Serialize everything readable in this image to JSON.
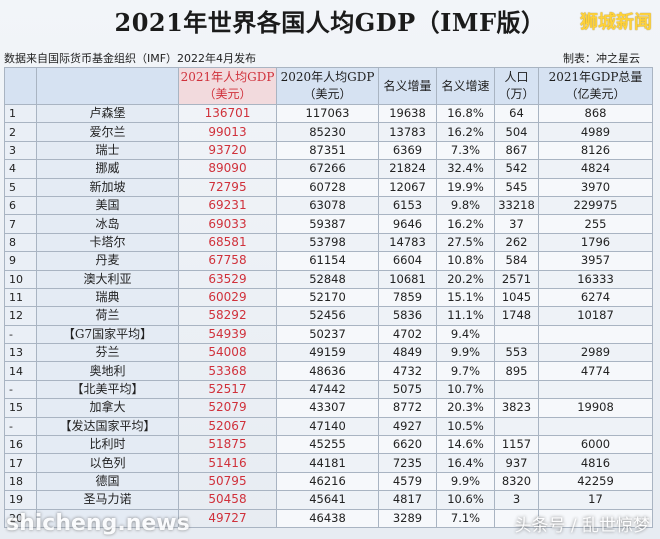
{
  "header": {
    "title": "2021年世界各国人均GDP（IMF版）",
    "brand": "狮城新闻",
    "source": "数据来自国际货币基金组织（IMF）2022年4月发布",
    "maker": "制表：冲之星云"
  },
  "columns": [
    "",
    "",
    "2021年人均GDP\n（美元）",
    "2020年人均GDP\n（美元）",
    "名义增量",
    "名义增速",
    "人口\n（万）",
    "2021年GDP总量\n（亿美元）"
  ],
  "rows": [
    {
      "rank": "1",
      "name": "卢森堡",
      "gdp2021": "136701",
      "gdp2020": "117063",
      "inc": "19638",
      "growth": "16.8%",
      "pop": "64",
      "total": "868"
    },
    {
      "rank": "2",
      "name": "爱尔兰",
      "gdp2021": "99013",
      "gdp2020": "85230",
      "inc": "13783",
      "growth": "16.2%",
      "pop": "504",
      "total": "4989"
    },
    {
      "rank": "3",
      "name": "瑞士",
      "gdp2021": "93720",
      "gdp2020": "87351",
      "inc": "6369",
      "growth": "7.3%",
      "pop": "867",
      "total": "8126"
    },
    {
      "rank": "4",
      "name": "挪威",
      "gdp2021": "89090",
      "gdp2020": "67266",
      "inc": "21824",
      "growth": "32.4%",
      "pop": "542",
      "total": "4824"
    },
    {
      "rank": "5",
      "name": "新加坡",
      "gdp2021": "72795",
      "gdp2020": "60728",
      "inc": "12067",
      "growth": "19.9%",
      "pop": "545",
      "total": "3970"
    },
    {
      "rank": "6",
      "name": "美国",
      "gdp2021": "69231",
      "gdp2020": "63078",
      "inc": "6153",
      "growth": "9.8%",
      "pop": "33218",
      "total": "229975"
    },
    {
      "rank": "7",
      "name": "冰岛",
      "gdp2021": "69033",
      "gdp2020": "59387",
      "inc": "9646",
      "growth": "16.2%",
      "pop": "37",
      "total": "255"
    },
    {
      "rank": "8",
      "name": "卡塔尔",
      "gdp2021": "68581",
      "gdp2020": "53798",
      "inc": "14783",
      "growth": "27.5%",
      "pop": "262",
      "total": "1796"
    },
    {
      "rank": "9",
      "name": "丹麦",
      "gdp2021": "67758",
      "gdp2020": "61154",
      "inc": "6604",
      "growth": "10.8%",
      "pop": "584",
      "total": "3957"
    },
    {
      "rank": "10",
      "name": "澳大利亚",
      "gdp2021": "63529",
      "gdp2020": "52848",
      "inc": "10681",
      "growth": "20.2%",
      "pop": "2571",
      "total": "16333"
    },
    {
      "rank": "11",
      "name": "瑞典",
      "gdp2021": "60029",
      "gdp2020": "52170",
      "inc": "7859",
      "growth": "15.1%",
      "pop": "1045",
      "total": "6274"
    },
    {
      "rank": "12",
      "name": "荷兰",
      "gdp2021": "58292",
      "gdp2020": "52456",
      "inc": "5836",
      "growth": "11.1%",
      "pop": "1748",
      "total": "10187"
    },
    {
      "rank": "-",
      "name": "【G7国家平均】",
      "gdp2021": "54939",
      "gdp2020": "50237",
      "inc": "4702",
      "growth": "9.4%",
      "pop": "",
      "total": ""
    },
    {
      "rank": "13",
      "name": "芬兰",
      "gdp2021": "54008",
      "gdp2020": "49159",
      "inc": "4849",
      "growth": "9.9%",
      "pop": "553",
      "total": "2989"
    },
    {
      "rank": "14",
      "name": "奥地利",
      "gdp2021": "53368",
      "gdp2020": "48636",
      "inc": "4732",
      "growth": "9.7%",
      "pop": "895",
      "total": "4774"
    },
    {
      "rank": "-",
      "name": "【北美平均】",
      "gdp2021": "52517",
      "gdp2020": "47442",
      "inc": "5075",
      "growth": "10.7%",
      "pop": "",
      "total": ""
    },
    {
      "rank": "15",
      "name": "加拿大",
      "gdp2021": "52079",
      "gdp2020": "43307",
      "inc": "8772",
      "growth": "20.3%",
      "pop": "3823",
      "total": "19908"
    },
    {
      "rank": "-",
      "name": "【发达国家平均】",
      "gdp2021": "52067",
      "gdp2020": "47140",
      "inc": "4927",
      "growth": "10.5%",
      "pop": "",
      "total": ""
    },
    {
      "rank": "16",
      "name": "比利时",
      "gdp2021": "51875",
      "gdp2020": "45255",
      "inc": "6620",
      "growth": "14.6%",
      "pop": "1157",
      "total": "6000"
    },
    {
      "rank": "17",
      "name": "以色列",
      "gdp2021": "51416",
      "gdp2020": "44181",
      "inc": "7235",
      "growth": "16.4%",
      "pop": "937",
      "total": "4816"
    },
    {
      "rank": "18",
      "name": "德国",
      "gdp2021": "50795",
      "gdp2020": "46216",
      "inc": "4579",
      "growth": "9.9%",
      "pop": "8320",
      "total": "42259"
    },
    {
      "rank": "19",
      "name": "圣马力诺",
      "gdp2021": "50458",
      "gdp2020": "45641",
      "inc": "4817",
      "growth": "10.6%",
      "pop": "3",
      "total": "17"
    },
    {
      "rank": "20",
      "name": "",
      "gdp2021": "49727",
      "gdp2020": "46438",
      "inc": "3289",
      "growth": "7.1%",
      "pop": "",
      "total": ""
    }
  ],
  "watermarks": {
    "left": "shicheng.news",
    "right": "头条号 / 乱世惊梦"
  }
}
